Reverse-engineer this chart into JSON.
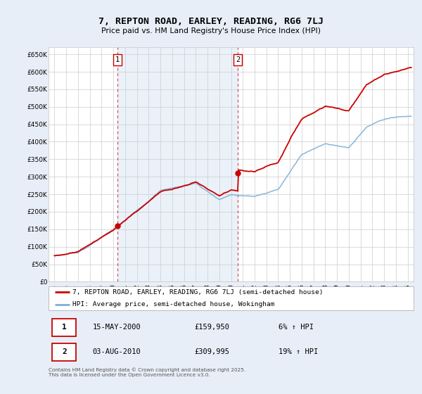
{
  "title": "7, REPTON ROAD, EARLEY, READING, RG6 7LJ",
  "subtitle": "Price paid vs. HM Land Registry's House Price Index (HPI)",
  "bg_color": "#e8eef8",
  "plot_bg_color": "#ffffff",
  "grid_color": "#cccccc",
  "red_line_color": "#cc0000",
  "blue_line_color": "#7ab0d4",
  "purchase1_date": 2000.37,
  "purchase1_price": 159950,
  "purchase2_date": 2010.58,
  "purchase2_price": 309995,
  "ylim_min": 0,
  "ylim_max": 670000,
  "yticks": [
    0,
    50000,
    100000,
    150000,
    200000,
    250000,
    300000,
    350000,
    400000,
    450000,
    500000,
    550000,
    600000,
    650000
  ],
  "xlim_min": 1994.5,
  "xlim_max": 2025.5,
  "xticks": [
    1995,
    1996,
    1997,
    1998,
    1999,
    2000,
    2001,
    2002,
    2003,
    2004,
    2005,
    2006,
    2007,
    2008,
    2009,
    2010,
    2011,
    2012,
    2013,
    2014,
    2015,
    2016,
    2017,
    2018,
    2019,
    2020,
    2021,
    2022,
    2023,
    2024,
    2025
  ],
  "legend_label_red": "7, REPTON ROAD, EARLEY, READING, RG6 7LJ (semi-detached house)",
  "legend_label_blue": "HPI: Average price, semi-detached house, Wokingham",
  "annotation1_num": "1",
  "annotation1_date": "15-MAY-2000",
  "annotation1_price": "£159,950",
  "annotation1_hpi": "6% ↑ HPI",
  "annotation2_num": "2",
  "annotation2_date": "03-AUG-2010",
  "annotation2_price": "£309,995",
  "annotation2_hpi": "19% ↑ HPI",
  "footer": "Contains HM Land Registry data © Crown copyright and database right 2025.\nThis data is licensed under the Open Government Licence v3.0."
}
